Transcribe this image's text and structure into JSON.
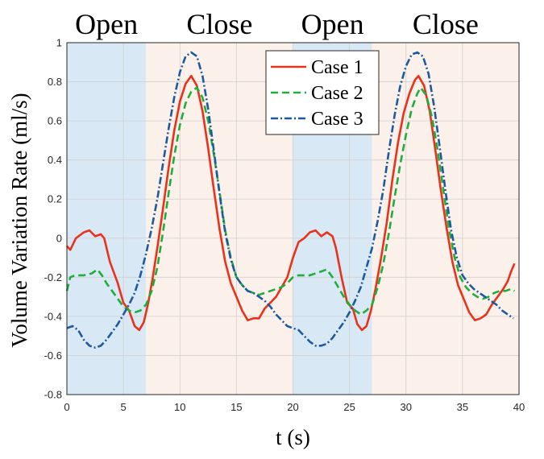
{
  "chart_data": {
    "type": "line",
    "xlabel": "t (s)",
    "ylabel": "Volume Variation Rate (ml/s)",
    "xlim": [
      0,
      40
    ],
    "ylim": [
      -0.8,
      1
    ],
    "x_ticks": [
      "0",
      "5",
      "10",
      "15",
      "20",
      "25",
      "30",
      "35",
      "40"
    ],
    "y_ticks": [
      "-0.8",
      "-0.6",
      "-0.4",
      "-0.2",
      "0",
      "0.2",
      "0.4",
      "0.6",
      "0.8",
      "1"
    ],
    "grid": true,
    "legend_position": "top-right",
    "phases": [
      {
        "label": "Open",
        "start": 0,
        "end": 7,
        "color": "#d9e8f5"
      },
      {
        "label": "Close",
        "start": 7,
        "end": 20,
        "color": "#fcf0ea"
      },
      {
        "label": "Open",
        "start": 20,
        "end": 27,
        "color": "#d9e8f5"
      },
      {
        "label": "Close",
        "start": 27,
        "end": 40,
        "color": "#fcf0ea"
      }
    ],
    "series": [
      {
        "name": "Case 1",
        "color": "#e8321c",
        "dash": "solid",
        "points": [
          [
            0,
            -0.04
          ],
          [
            0.3,
            -0.06
          ],
          [
            0.8,
            0.0
          ],
          [
            1.5,
            0.03
          ],
          [
            2.0,
            0.04
          ],
          [
            2.5,
            0.01
          ],
          [
            3.0,
            0.02
          ],
          [
            3.3,
            0.0
          ],
          [
            3.8,
            -0.12
          ],
          [
            4.5,
            -0.23
          ],
          [
            5.0,
            -0.33
          ],
          [
            5.5,
            -0.37
          ],
          [
            6.0,
            -0.45
          ],
          [
            6.4,
            -0.47
          ],
          [
            6.8,
            -0.43
          ],
          [
            7.2,
            -0.33
          ],
          [
            7.6,
            -0.2
          ],
          [
            8.0,
            -0.05
          ],
          [
            8.5,
            0.15
          ],
          [
            9.0,
            0.36
          ],
          [
            9.5,
            0.55
          ],
          [
            10.0,
            0.7
          ],
          [
            10.5,
            0.79
          ],
          [
            11.0,
            0.83
          ],
          [
            11.5,
            0.78
          ],
          [
            12.0,
            0.65
          ],
          [
            12.5,
            0.46
          ],
          [
            13.0,
            0.25
          ],
          [
            13.5,
            0.05
          ],
          [
            14.0,
            -0.12
          ],
          [
            14.5,
            -0.23
          ],
          [
            15.0,
            -0.3
          ],
          [
            15.5,
            -0.37
          ],
          [
            16.0,
            -0.42
          ],
          [
            16.5,
            -0.41
          ],
          [
            17.0,
            -0.41
          ],
          [
            17.5,
            -0.36
          ],
          [
            18.0,
            -0.33
          ],
          [
            18.5,
            -0.3
          ],
          [
            19.0,
            -0.25
          ],
          [
            19.5,
            -0.2
          ],
          [
            20.0,
            -0.1
          ],
          [
            20.5,
            -0.02
          ],
          [
            21.0,
            0.0
          ],
          [
            21.5,
            0.03
          ],
          [
            22.0,
            0.04
          ],
          [
            22.5,
            0.01
          ],
          [
            23.0,
            0.03
          ],
          [
            23.5,
            0.01
          ],
          [
            23.8,
            -0.05
          ],
          [
            24.3,
            -0.2
          ],
          [
            24.8,
            -0.33
          ],
          [
            25.3,
            -0.36
          ],
          [
            25.7,
            -0.44
          ],
          [
            26.1,
            -0.47
          ],
          [
            26.5,
            -0.45
          ],
          [
            26.9,
            -0.37
          ],
          [
            27.3,
            -0.26
          ],
          [
            27.8,
            -0.1
          ],
          [
            28.3,
            0.08
          ],
          [
            28.8,
            0.3
          ],
          [
            29.3,
            0.49
          ],
          [
            29.8,
            0.64
          ],
          [
            30.3,
            0.74
          ],
          [
            30.8,
            0.81
          ],
          [
            31.1,
            0.83
          ],
          [
            31.6,
            0.78
          ],
          [
            32.1,
            0.65
          ],
          [
            32.6,
            0.45
          ],
          [
            33.1,
            0.24
          ],
          [
            33.6,
            0.05
          ],
          [
            34.1,
            -0.12
          ],
          [
            34.6,
            -0.24
          ],
          [
            35.1,
            -0.31
          ],
          [
            35.6,
            -0.38
          ],
          [
            36.1,
            -0.42
          ],
          [
            36.6,
            -0.41
          ],
          [
            37.1,
            -0.39
          ],
          [
            37.6,
            -0.34
          ],
          [
            38.1,
            -0.3
          ],
          [
            38.6,
            -0.26
          ],
          [
            39.0,
            -0.22
          ],
          [
            39.3,
            -0.17
          ],
          [
            39.6,
            -0.13
          ]
        ]
      },
      {
        "name": "Case 2",
        "color": "#1fae3c",
        "dash": "dashed",
        "points": [
          [
            0,
            -0.27
          ],
          [
            0.3,
            -0.2
          ],
          [
            0.7,
            -0.19
          ],
          [
            1.5,
            -0.19
          ],
          [
            2.2,
            -0.18
          ],
          [
            2.7,
            -0.16
          ],
          [
            3.1,
            -0.19
          ],
          [
            3.5,
            -0.23
          ],
          [
            4.0,
            -0.27
          ],
          [
            4.5,
            -0.31
          ],
          [
            5.0,
            -0.35
          ],
          [
            5.5,
            -0.37
          ],
          [
            6.0,
            -0.38
          ],
          [
            6.5,
            -0.37
          ],
          [
            7.0,
            -0.34
          ],
          [
            7.5,
            -0.27
          ],
          [
            8.0,
            -0.15
          ],
          [
            8.5,
            0.03
          ],
          [
            9.0,
            0.23
          ],
          [
            9.5,
            0.42
          ],
          [
            10.0,
            0.58
          ],
          [
            10.5,
            0.69
          ],
          [
            11.0,
            0.75
          ],
          [
            11.5,
            0.77
          ],
          [
            12.0,
            0.72
          ],
          [
            12.5,
            0.6
          ],
          [
            13.0,
            0.43
          ],
          [
            13.5,
            0.24
          ],
          [
            14.0,
            0.04
          ],
          [
            14.5,
            -0.1
          ],
          [
            15.0,
            -0.2
          ],
          [
            15.5,
            -0.24
          ],
          [
            16.0,
            -0.27
          ],
          [
            16.5,
            -0.28
          ],
          [
            17.0,
            -0.29
          ],
          [
            17.5,
            -0.28
          ],
          [
            18.0,
            -0.27
          ],
          [
            18.5,
            -0.26
          ],
          [
            19.0,
            -0.25
          ],
          [
            19.5,
            -0.23
          ],
          [
            20.0,
            -0.2
          ],
          [
            20.5,
            -0.19
          ],
          [
            21.5,
            -0.19
          ],
          [
            22.5,
            -0.17
          ],
          [
            23.0,
            -0.16
          ],
          [
            23.5,
            -0.2
          ],
          [
            24.0,
            -0.25
          ],
          [
            24.5,
            -0.3
          ],
          [
            25.0,
            -0.34
          ],
          [
            25.5,
            -0.37
          ],
          [
            26.0,
            -0.39
          ],
          [
            26.5,
            -0.37
          ],
          [
            27.0,
            -0.34
          ],
          [
            27.5,
            -0.25
          ],
          [
            28.0,
            -0.13
          ],
          [
            28.5,
            0.03
          ],
          [
            29.0,
            0.21
          ],
          [
            29.5,
            0.38
          ],
          [
            30.0,
            0.53
          ],
          [
            30.5,
            0.66
          ],
          [
            31.0,
            0.74
          ],
          [
            31.3,
            0.77
          ],
          [
            31.8,
            0.73
          ],
          [
            32.3,
            0.62
          ],
          [
            32.8,
            0.45
          ],
          [
            33.3,
            0.25
          ],
          [
            33.8,
            0.05
          ],
          [
            34.3,
            -0.1
          ],
          [
            34.8,
            -0.2
          ],
          [
            35.3,
            -0.25
          ],
          [
            35.8,
            -0.28
          ],
          [
            36.3,
            -0.3
          ],
          [
            36.8,
            -0.31
          ],
          [
            37.3,
            -0.3
          ],
          [
            37.8,
            -0.28
          ],
          [
            38.3,
            -0.27
          ],
          [
            38.8,
            -0.27
          ],
          [
            39.3,
            -0.26
          ],
          [
            39.6,
            -0.27
          ]
        ]
      },
      {
        "name": "Case 3",
        "color": "#1b5aa0",
        "dash": "dashdot",
        "points": [
          [
            0,
            -0.46
          ],
          [
            0.5,
            -0.45
          ],
          [
            1.0,
            -0.47
          ],
          [
            1.5,
            -0.52
          ],
          [
            2.0,
            -0.55
          ],
          [
            2.5,
            -0.56
          ],
          [
            3.0,
            -0.55
          ],
          [
            3.5,
            -0.52
          ],
          [
            4.0,
            -0.48
          ],
          [
            4.5,
            -0.44
          ],
          [
            5.0,
            -0.39
          ],
          [
            5.5,
            -0.34
          ],
          [
            6.0,
            -0.28
          ],
          [
            6.5,
            -0.19
          ],
          [
            7.0,
            -0.08
          ],
          [
            7.5,
            0.05
          ],
          [
            8.0,
            0.2
          ],
          [
            8.5,
            0.38
          ],
          [
            9.0,
            0.56
          ],
          [
            9.5,
            0.72
          ],
          [
            10.0,
            0.85
          ],
          [
            10.5,
            0.93
          ],
          [
            11.0,
            0.95
          ],
          [
            11.5,
            0.93
          ],
          [
            12.0,
            0.83
          ],
          [
            12.5,
            0.66
          ],
          [
            13.0,
            0.45
          ],
          [
            13.5,
            0.23
          ],
          [
            14.0,
            0.03
          ],
          [
            14.5,
            -0.11
          ],
          [
            15.0,
            -0.2
          ],
          [
            15.5,
            -0.24
          ],
          [
            16.0,
            -0.27
          ],
          [
            16.5,
            -0.28
          ],
          [
            17.0,
            -0.3
          ],
          [
            17.5,
            -0.32
          ],
          [
            18.0,
            -0.35
          ],
          [
            18.5,
            -0.39
          ],
          [
            19.0,
            -0.42
          ],
          [
            19.5,
            -0.45
          ],
          [
            20.0,
            -0.46
          ],
          [
            20.5,
            -0.47
          ],
          [
            21.0,
            -0.5
          ],
          [
            21.5,
            -0.53
          ],
          [
            22.0,
            -0.55
          ],
          [
            22.5,
            -0.55
          ],
          [
            23.0,
            -0.54
          ],
          [
            23.5,
            -0.51
          ],
          [
            24.0,
            -0.47
          ],
          [
            24.5,
            -0.43
          ],
          [
            25.0,
            -0.38
          ],
          [
            25.5,
            -0.32
          ],
          [
            26.0,
            -0.25
          ],
          [
            26.5,
            -0.15
          ],
          [
            27.0,
            -0.05
          ],
          [
            27.5,
            0.09
          ],
          [
            28.0,
            0.25
          ],
          [
            28.5,
            0.45
          ],
          [
            29.0,
            0.63
          ],
          [
            29.5,
            0.78
          ],
          [
            30.0,
            0.88
          ],
          [
            30.5,
            0.94
          ],
          [
            31.0,
            0.95
          ],
          [
            31.5,
            0.93
          ],
          [
            32.0,
            0.84
          ],
          [
            32.5,
            0.67
          ],
          [
            33.0,
            0.46
          ],
          [
            33.5,
            0.24
          ],
          [
            34.0,
            0.04
          ],
          [
            34.5,
            -0.1
          ],
          [
            35.0,
            -0.19
          ],
          [
            35.5,
            -0.23
          ],
          [
            36.0,
            -0.26
          ],
          [
            36.5,
            -0.28
          ],
          [
            37.0,
            -0.3
          ],
          [
            37.5,
            -0.32
          ],
          [
            38.0,
            -0.34
          ],
          [
            38.5,
            -0.37
          ],
          [
            39.0,
            -0.39
          ],
          [
            39.5,
            -0.41
          ]
        ]
      }
    ]
  }
}
